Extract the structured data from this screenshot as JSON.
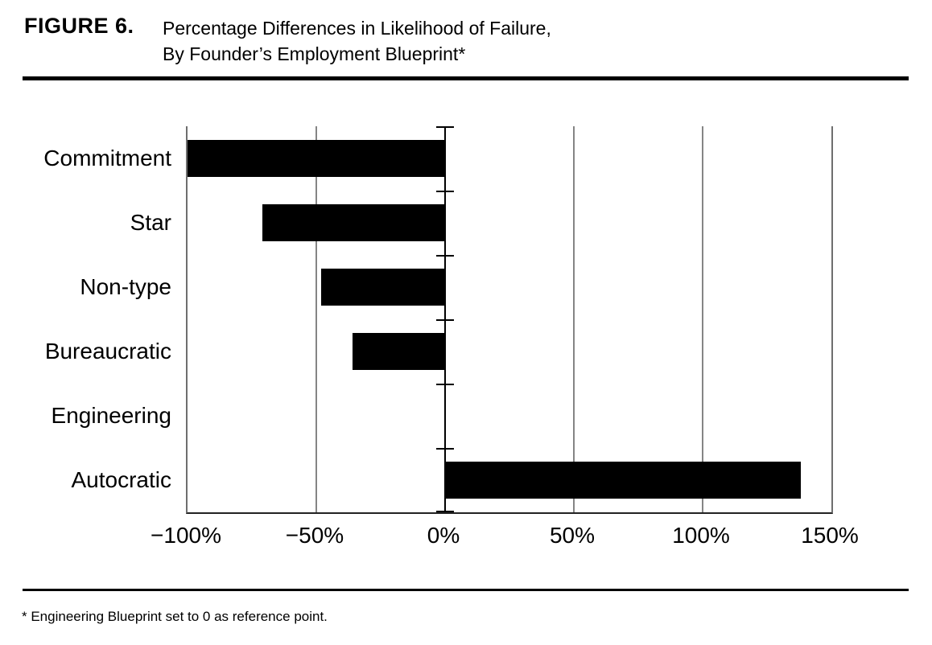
{
  "figure": {
    "label": "FIGURE 6.",
    "title_line1": "Percentage Differences in Likelihood of Failure,",
    "title_line2": "By Founder’s Employment Blueprint*"
  },
  "footnote": "* Engineering Blueprint set to 0 as reference point.",
  "chart_data": {
    "type": "bar",
    "orientation": "horizontal",
    "title": "Percentage Differences in Likelihood of Failure, By Founder's Employment Blueprint",
    "categories": [
      "Commitment",
      "Star",
      "Non-type",
      "Bureaucratic",
      "Engineering",
      "Autocratic"
    ],
    "values": [
      -100,
      -71,
      -48,
      -36,
      0,
      138
    ],
    "unit": "%",
    "xlabel": "",
    "ylabel": "",
    "xlim": [
      -100,
      150
    ],
    "x_tick_values": [
      -100,
      -50,
      0,
      50,
      100,
      150
    ],
    "x_tick_labels": [
      "−100%",
      "−50%",
      "0%",
      "50%",
      "100%",
      "150%"
    ],
    "grid": "vertical gridlines at -50, 50, 100; black zero reference axis with category ticks",
    "legend_position": "none",
    "annotation": "Engineering Blueprint set to 0 as reference point"
  },
  "colors": {
    "background": "#ffffff",
    "bar": "#000000",
    "gridline": "#858585",
    "frame": "#6e6e6e",
    "zero_axis": "#000000",
    "rule": "#000000",
    "text": "#000000"
  }
}
